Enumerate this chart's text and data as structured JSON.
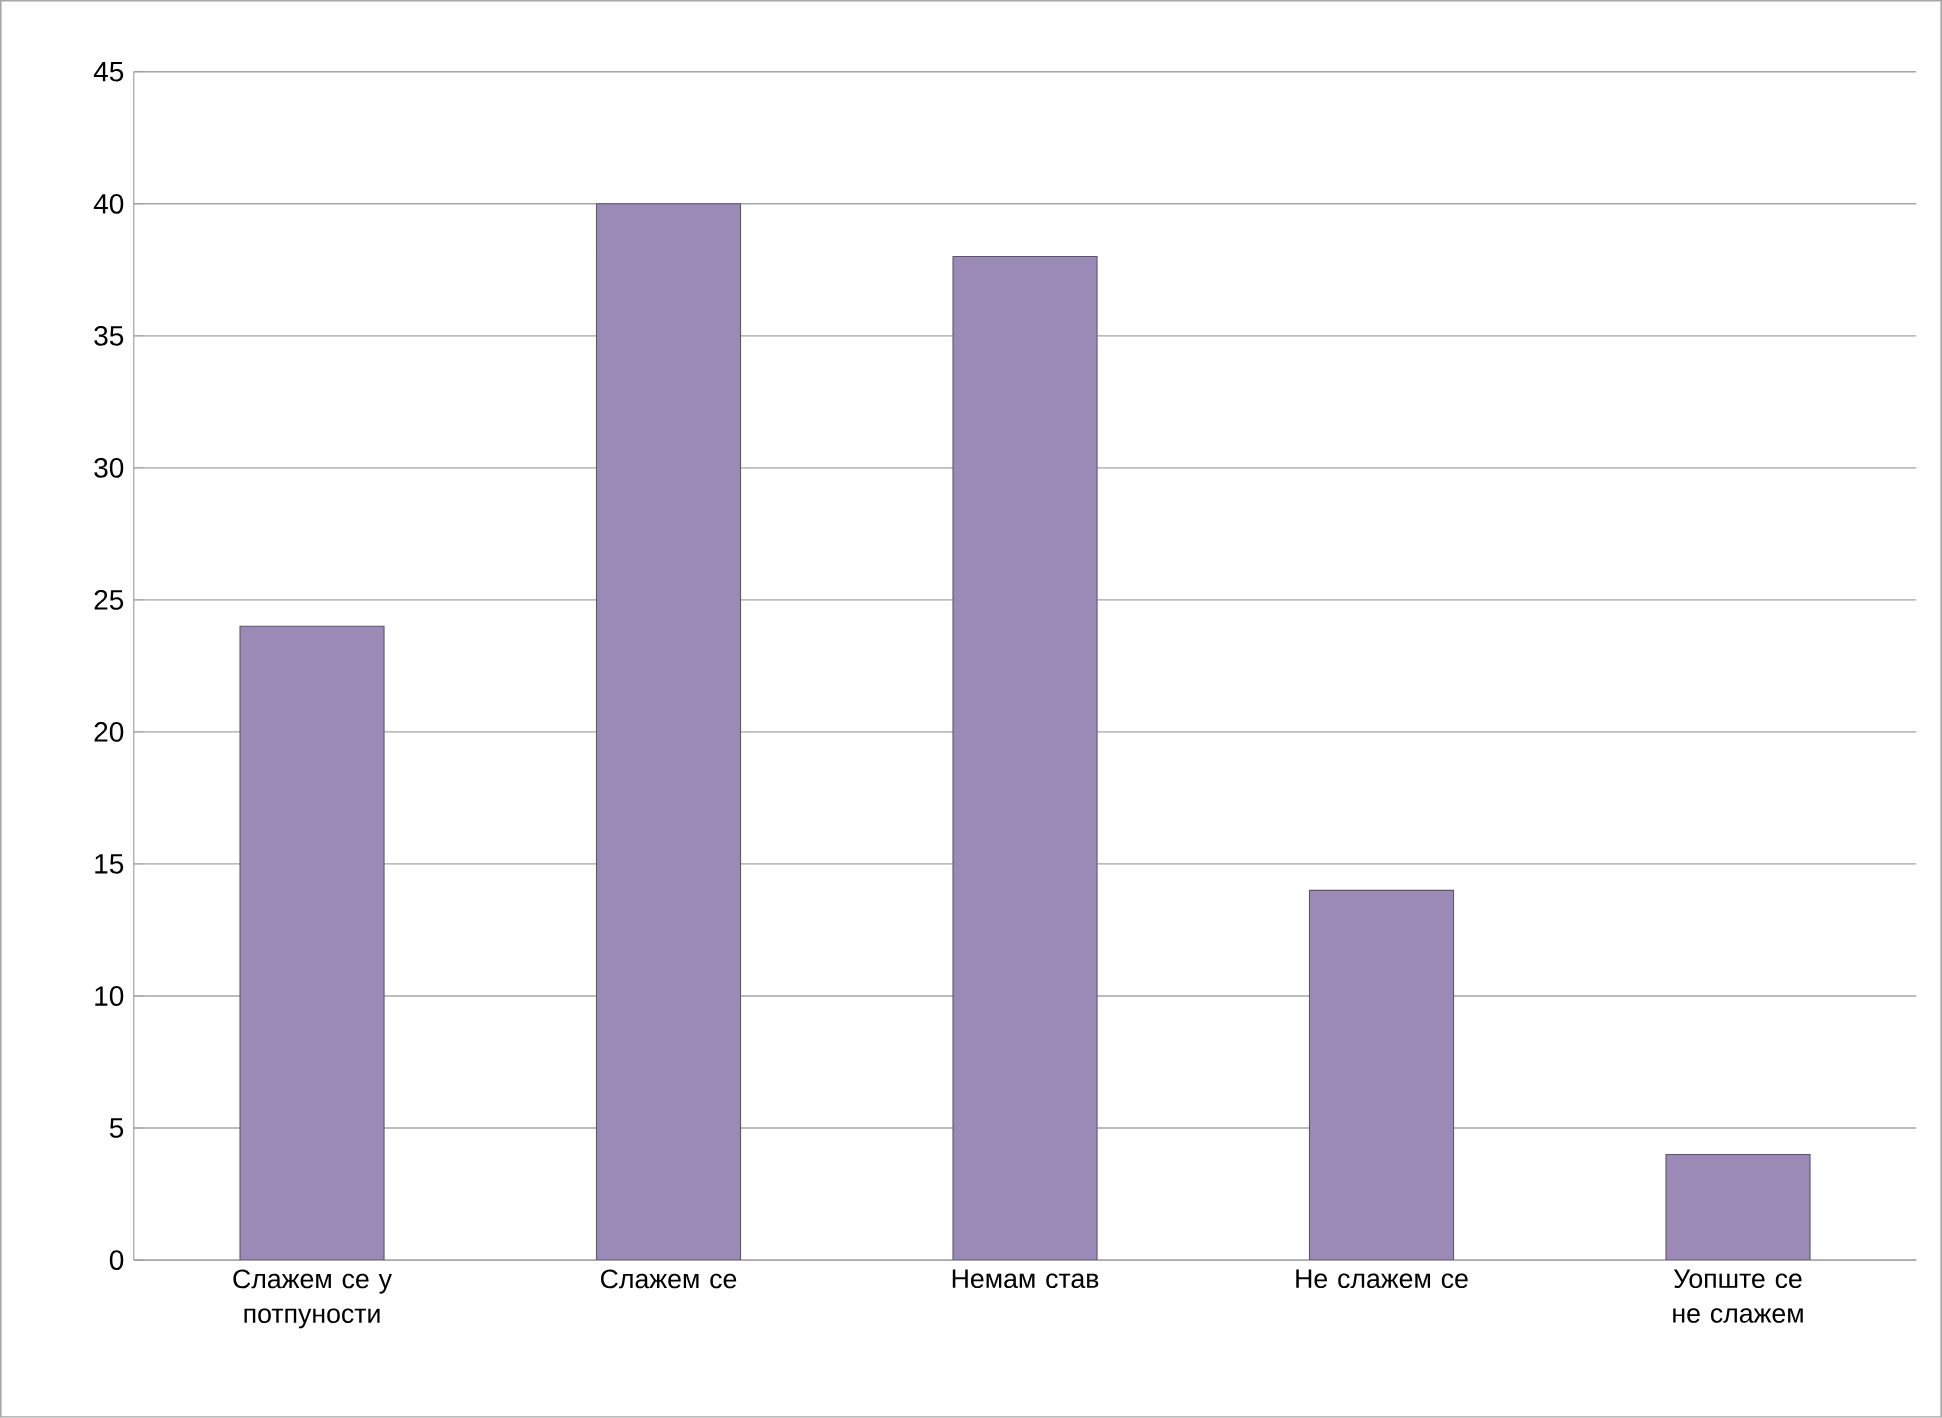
{
  "chart_data": {
    "type": "bar",
    "categories": [
      "Слажем се у потпуности",
      "Слажем се",
      "Немам став",
      "Не слажем се",
      "Уопште се не слажем"
    ],
    "values": [
      24,
      40,
      38,
      14,
      4
    ],
    "color": "#9a8ab5",
    "ylim": [
      0,
      45
    ],
    "yticks": [
      0,
      5,
      10,
      15,
      20,
      25,
      30,
      35,
      40,
      45
    ],
    "grid": "y"
  }
}
